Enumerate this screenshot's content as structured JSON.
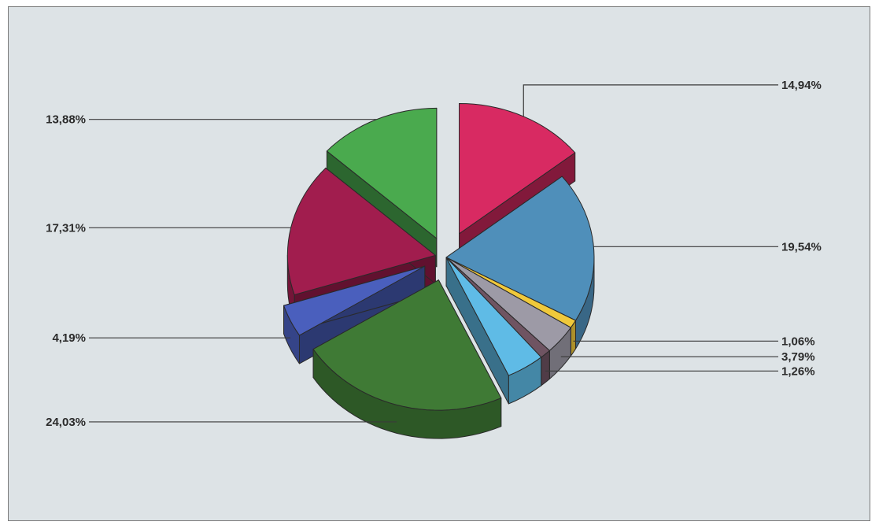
{
  "chart_data": {
    "type": "pie",
    "title": "",
    "three_d": true,
    "exploded": true,
    "slices": [
      {
        "label": "14,94%",
        "value": 14.94,
        "color": "#d82a62"
      },
      {
        "label": "19,54%",
        "value": 19.54,
        "color": "#4f8fba"
      },
      {
        "label": "1,06%",
        "value": 1.06,
        "color": "#f0c93b"
      },
      {
        "label": "3,79%",
        "value": 3.79,
        "color": "#9d9aa6"
      },
      {
        "label": "1,26%",
        "value": 1.26,
        "color": "#6f5462"
      },
      {
        "label": "",
        "value": 4.34,
        "color": "#5fbbe6"
      },
      {
        "label": "24,03%",
        "value": 24.03,
        "color": "#3f7a35"
      },
      {
        "label": "4,19%",
        "value": 4.19,
        "color": "#4a5fbd"
      },
      {
        "label": "17,31%",
        "value": 17.31,
        "color": "#a11d4e"
      },
      {
        "label": "13,88%",
        "value": 13.88,
        "color": "#4aaa4e"
      }
    ],
    "legend": "none",
    "background_color": "#dde3e6"
  }
}
